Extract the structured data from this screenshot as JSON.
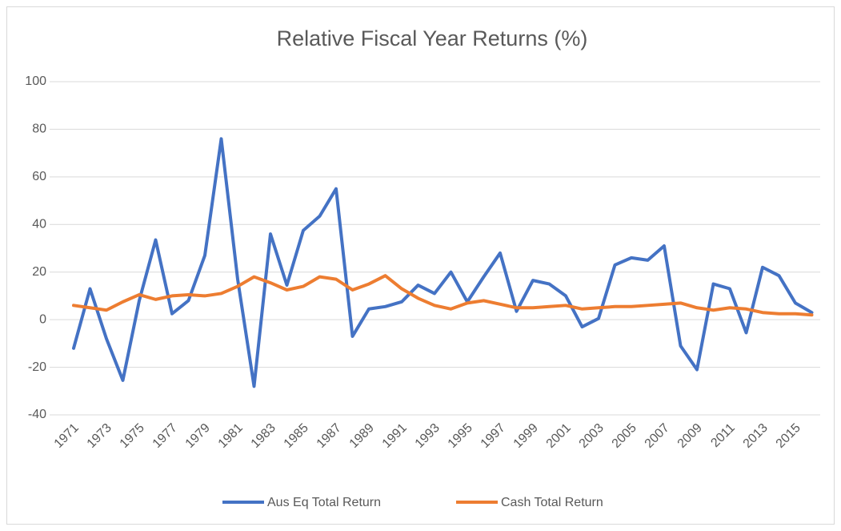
{
  "chart_data": {
    "type": "line",
    "title": "Relative Fiscal Year Returns (%)",
    "categories": [
      "1971",
      null,
      "1973",
      null,
      "1975",
      null,
      "1977",
      null,
      "1979",
      null,
      "1981",
      null,
      "1983",
      null,
      "1985",
      null,
      "1987",
      null,
      "1989",
      null,
      "1991",
      null,
      "1993",
      null,
      "1995",
      null,
      "1997",
      null,
      "1999",
      null,
      "2001",
      null,
      "2003",
      null,
      "2005",
      null,
      "2007",
      null,
      "2009",
      null,
      "2011",
      null,
      "2013",
      null,
      "2015",
      null
    ],
    "series": [
      {
        "name": "Aus Eq Total Return",
        "color": "#4472c4",
        "values": [
          -12,
          13,
          -8,
          -25.5,
          8,
          33.5,
          2.5,
          8,
          27,
          76,
          17,
          -28,
          36,
          14.5,
          37.5,
          43.5,
          55,
          -7,
          4.5,
          5.5,
          7.5,
          14.5,
          11,
          20,
          7.5,
          18,
          28,
          3.5,
          16.5,
          15,
          10,
          -3,
          0.5,
          23,
          26,
          25,
          31,
          -11,
          -21,
          15,
          13,
          -5.5,
          22,
          18.5,
          7,
          3
        ]
      },
      {
        "name": "Cash Total Return",
        "color": "#ed7d31",
        "values": [
          6,
          5,
          4,
          7.5,
          10.5,
          8.5,
          10,
          10.5,
          10,
          11,
          14,
          18,
          15.5,
          12.5,
          14,
          18,
          17,
          12.5,
          15,
          18.5,
          13,
          9,
          6,
          4.5,
          7,
          8,
          6.5,
          5,
          5,
          5.5,
          6,
          4.5,
          5,
          5.5,
          5.5,
          6,
          6.5,
          7,
          5,
          4,
          5,
          4.5,
          3,
          2.5,
          2.5,
          2
        ]
      }
    ],
    "ylim": [
      -40,
      100
    ],
    "yticks": [
      -40,
      -20,
      0,
      20,
      40,
      60,
      80,
      100
    ],
    "grid": true,
    "legend": "bottom"
  }
}
